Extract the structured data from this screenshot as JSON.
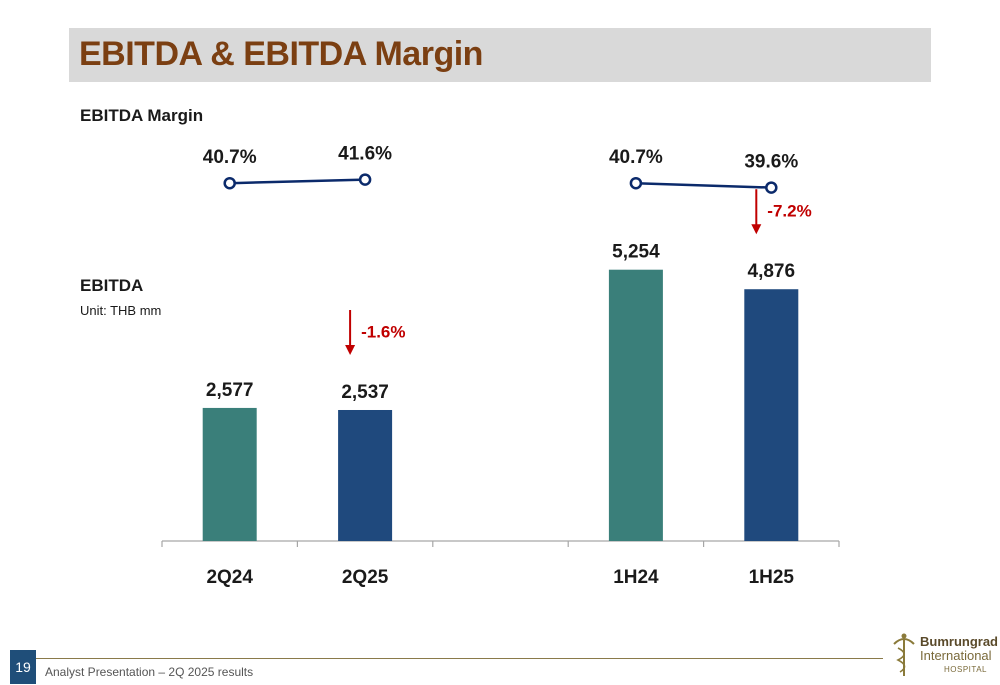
{
  "header": {
    "title": "EBITDA & EBITDA Margin"
  },
  "margin_section": {
    "label": "EBITDA Margin"
  },
  "ebitda_section": {
    "label": "EBITDA",
    "unit": "Unit: THB mm"
  },
  "footer": {
    "page_number": "19",
    "text": "Analyst Presentation – 2Q 2025 results"
  },
  "logo": {
    "line1": "Bumrungrad",
    "line2": "International",
    "line3": "HOSPITAL"
  },
  "colors": {
    "title": "#7b3f12",
    "prior_bar": "#3a7f7a",
    "current_bar": "#1f497d",
    "margin_line": "#0b2a6b",
    "change_arrow": "#c00000",
    "axis": "#a6a6a6"
  },
  "chart_data": [
    {
      "type": "line",
      "title": "EBITDA Margin",
      "groups": [
        {
          "categories": [
            "2Q24",
            "2Q25"
          ],
          "values": [
            40.7,
            41.6
          ],
          "labels": [
            "40.7%",
            "41.6%"
          ]
        },
        {
          "categories": [
            "1H24",
            "1H25"
          ],
          "values": [
            40.7,
            39.6
          ],
          "labels": [
            "40.7%",
            "39.6%"
          ]
        }
      ]
    },
    {
      "type": "bar",
      "title": "EBITDA",
      "unit": "Unit: THB mm",
      "categories": [
        "2Q24",
        "2Q25",
        "",
        "1H24",
        "1H25"
      ],
      "values": [
        2577,
        2537,
        null,
        5254,
        4876
      ],
      "labels": [
        "2,577",
        "2,537",
        "",
        "5,254",
        "4,876"
      ],
      "period": [
        "prior",
        "current",
        "",
        "prior",
        "current"
      ],
      "changes": [
        {
          "category": "2Q25",
          "label": "-1.6%",
          "direction": "down"
        },
        {
          "category": "1H25",
          "label": "-7.2%",
          "direction": "down"
        }
      ],
      "ylim": [
        0,
        5500
      ],
      "grid": false,
      "legend": "none"
    }
  ]
}
